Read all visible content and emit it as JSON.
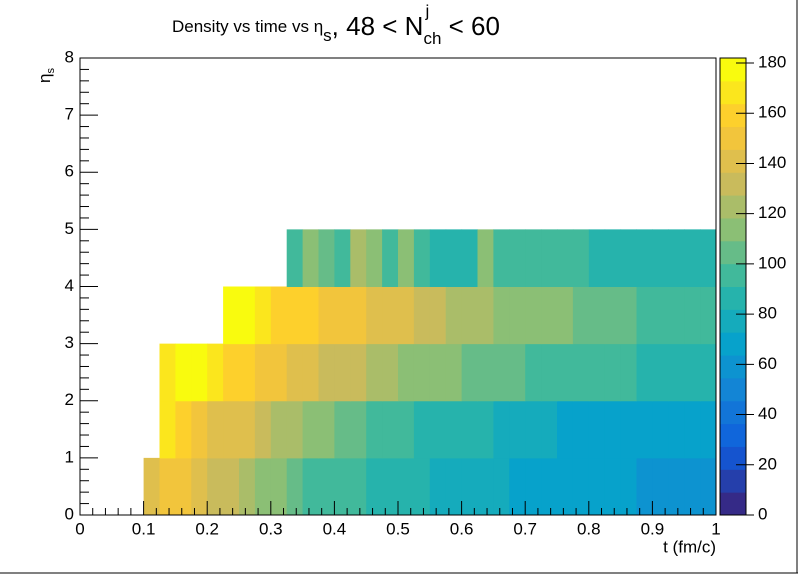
{
  "chart_data": {
    "type": "heatmap",
    "title_parts": [
      "Density vs time vs η",
      "s",
      ", 48 < N",
      "j",
      "ch",
      " < 60"
    ],
    "xlabel": "t (fm/c)",
    "ylabel_parts": [
      "η",
      "s"
    ],
    "x_edges": [
      0,
      0.025,
      0.05,
      0.075,
      0.1,
      0.125,
      0.15,
      0.175,
      0.2,
      0.225,
      0.25,
      0.275,
      0.3,
      0.325,
      0.35,
      0.375,
      0.4,
      0.425,
      0.45,
      0.475,
      0.5,
      0.525,
      0.55,
      0.575,
      0.6,
      0.625,
      0.65,
      0.675,
      0.7,
      0.725,
      0.75,
      0.775,
      0.8,
      0.825,
      0.85,
      0.875,
      0.9,
      0.925,
      0.95,
      0.975,
      1
    ],
    "y_edges": [
      0,
      1,
      2,
      3,
      4,
      5
    ],
    "z": [
      [
        null,
        null,
        null,
        null,
        140,
        148,
        150,
        140,
        136,
        130,
        124,
        118,
        112,
        106,
        100,
        98,
        94,
        92,
        90,
        88,
        84,
        82,
        80,
        78,
        78,
        76,
        74,
        72,
        72,
        70,
        70,
        68,
        66,
        66,
        64,
        62,
        60,
        60,
        58,
        58
      ],
      [
        null,
        null,
        null,
        null,
        null,
        170,
        160,
        150,
        145,
        140,
        138,
        135,
        125,
        120,
        115,
        110,
        108,
        105,
        100,
        95,
        92,
        90,
        88,
        86,
        84,
        82,
        80,
        78,
        76,
        74,
        72,
        72,
        70,
        70,
        68,
        68,
        66,
        66,
        65,
        64
      ],
      [
        null,
        null,
        null,
        null,
        null,
        172,
        180,
        175,
        168,
        160,
        155,
        152,
        150,
        145,
        140,
        135,
        132,
        128,
        125,
        122,
        118,
        115,
        112,
        110,
        108,
        106,
        104,
        102,
        100,
        98,
        96,
        95,
        94,
        92,
        92,
        90,
        90,
        88,
        88,
        86
      ],
      [
        null,
        null,
        null,
        null,
        null,
        null,
        null,
        null,
        null,
        182,
        180,
        170,
        160,
        158,
        155,
        152,
        150,
        148,
        145,
        142,
        138,
        134,
        130,
        126,
        122,
        120,
        118,
        116,
        114,
        112,
        110,
        108,
        106,
        104,
        102,
        100,
        100,
        98,
        98,
        96
      ],
      [
        null,
        null,
        null,
        null,
        null,
        null,
        null,
        null,
        null,
        null,
        null,
        null,
        null,
        95,
        110,
        105,
        100,
        120,
        115,
        95,
        110,
        100,
        90,
        90,
        88,
        110,
        92,
        100,
        98,
        96,
        94,
        92,
        90,
        88,
        90,
        86,
        84,
        88,
        86,
        85
      ]
    ],
    "xlim": [
      0,
      1
    ],
    "xticks": [
      0,
      0.1,
      0.2,
      0.3,
      0.4,
      0.5,
      0.6,
      0.7,
      0.8,
      0.9,
      1
    ],
    "ylim": [
      0,
      8
    ],
    "yticks": [
      0,
      1,
      2,
      3,
      4,
      5,
      6,
      7,
      8
    ],
    "zlim": [
      0,
      182
    ],
    "zticks": [
      0,
      20,
      40,
      60,
      80,
      100,
      120,
      140,
      160,
      180
    ],
    "z_levels": 20,
    "colorscale": [
      "#352a87",
      "#0f5cdd",
      "#1481d6",
      "#06a4ca",
      "#2eb7a4",
      "#87bf77",
      "#d1bb59",
      "#fec832",
      "#f9fb0e"
    ]
  }
}
